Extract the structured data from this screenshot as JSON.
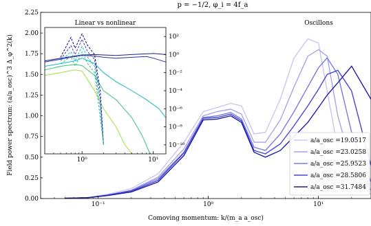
{
  "chart_data": [
    {
      "type": "line",
      "title": "p = −1/2, φ_i = 4f_a",
      "xlabel": "Comoving momentum: k/(m_a a_osc)",
      "ylabel": "Field power spectrum: (a/a_osc)^3 Δ_φ^2(k)",
      "xscale": "log",
      "xlim": [
        0.03,
        30
      ],
      "ylim": [
        0,
        2.25
      ],
      "x_ticks": [
        "10⁻¹",
        "10⁰",
        "10¹"
      ],
      "y_ticks": [
        "0.00",
        "0.25",
        "0.50",
        "0.75",
        "1.00",
        "1.25",
        "1.50",
        "1.75",
        "2.00",
        "2.25"
      ],
      "annotation": "Oscillons",
      "legend_placement": "lower right",
      "series": [
        {
          "name": "a/a_osc =19.0517",
          "color": "#c8c8ee",
          "x": [
            0.05,
            0.08,
            0.12,
            0.2,
            0.35,
            0.6,
            0.9,
            1.2,
            1.6,
            2.0,
            2.6,
            3.3,
            4.5,
            6.0,
            8.0,
            10.0,
            12.0,
            15.0,
            20.0,
            30.0
          ],
          "y": [
            0.003,
            0.01,
            0.05,
            0.12,
            0.3,
            0.68,
            1.05,
            1.1,
            1.15,
            1.12,
            0.78,
            0.8,
            1.2,
            1.7,
            1.93,
            1.88,
            1.3,
            0.6,
            0.25,
            0.05
          ]
        },
        {
          "name": "a/a_osc =23.0258",
          "color": "#a4a4ea",
          "x": [
            0.05,
            0.08,
            0.12,
            0.2,
            0.35,
            0.6,
            0.9,
            1.2,
            1.6,
            2.0,
            2.6,
            3.3,
            4.5,
            6.0,
            8.0,
            10.0,
            12.0,
            15.0,
            20.0,
            30.0
          ],
          "y": [
            0.003,
            0.01,
            0.04,
            0.1,
            0.26,
            0.6,
            1.0,
            1.05,
            1.08,
            1.02,
            0.68,
            0.68,
            0.95,
            1.35,
            1.72,
            1.8,
            1.72,
            1.0,
            0.4,
            0.1
          ]
        },
        {
          "name": "a/a_osc =25.9523",
          "color": "#7a7ae2",
          "x": [
            0.05,
            0.08,
            0.12,
            0.2,
            0.35,
            0.6,
            0.9,
            1.2,
            1.6,
            2.0,
            2.6,
            3.3,
            4.5,
            6.0,
            8.0,
            10.0,
            12.0,
            15.0,
            20.0,
            30.0
          ],
          "y": [
            0.003,
            0.01,
            0.04,
            0.1,
            0.24,
            0.56,
            0.98,
            1.0,
            1.04,
            0.96,
            0.62,
            0.58,
            0.78,
            1.05,
            1.35,
            1.58,
            1.7,
            1.5,
            0.8,
            0.2
          ]
        },
        {
          "name": "a/a_osc =28.5806",
          "color": "#4646d6",
          "x": [
            0.05,
            0.08,
            0.12,
            0.2,
            0.35,
            0.6,
            0.9,
            1.2,
            1.6,
            2.0,
            2.6,
            3.3,
            4.5,
            6.0,
            8.0,
            10.0,
            12.0,
            15.0,
            20.0,
            30.0
          ],
          "y": [
            0.003,
            0.01,
            0.04,
            0.09,
            0.22,
            0.55,
            0.97,
            0.98,
            1.02,
            0.94,
            0.58,
            0.54,
            0.66,
            0.88,
            1.12,
            1.32,
            1.5,
            1.55,
            1.3,
            0.4
          ]
        },
        {
          "name": "a/a_osc =31.7484",
          "color": "#1c1ca8",
          "x": [
            0.05,
            0.08,
            0.12,
            0.2,
            0.35,
            0.6,
            0.9,
            1.2,
            1.6,
            2.0,
            2.6,
            3.3,
            4.5,
            6.0,
            8.0,
            10.0,
            12.0,
            15.0,
            20.0,
            30.0
          ],
          "y": [
            0.003,
            0.01,
            0.035,
            0.08,
            0.2,
            0.52,
            0.95,
            0.96,
            1.0,
            0.92,
            0.56,
            0.5,
            0.58,
            0.75,
            0.92,
            1.1,
            1.25,
            1.4,
            1.6,
            1.2
          ]
        }
      ]
    },
    {
      "type": "line",
      "title": "Linear vs nonlinear",
      "xscale": "log",
      "yscale": "log",
      "xlim": [
        0.3,
        15
      ],
      "ylim": [
        1e-11,
        1000.0
      ],
      "x_ticks": [
        "10⁰",
        "10¹"
      ],
      "y_ticks": [
        "10²",
        "10⁰",
        "10⁻²",
        "10⁻⁴",
        "10⁻⁶",
        "10⁻⁸",
        "10⁻¹⁰"
      ],
      "series": [
        {
          "color": "#1c1c8e",
          "dash": false,
          "x": [
            0.3,
            0.5,
            0.8,
            1.0,
            1.5,
            2.0,
            3.0,
            5.0,
            8.0,
            10.0,
            15.0
          ],
          "y": [
            0.2,
            0.4,
            0.7,
            0.9,
            1.0,
            0.9,
            0.8,
            1.0,
            1.2,
            1.3,
            1.0
          ]
        },
        {
          "color": "#2d2da4",
          "dash": false,
          "x": [
            0.3,
            0.5,
            0.8,
            1.0,
            1.5,
            2.0,
            3.0,
            5.0,
            8.0,
            10.0,
            15.0
          ],
          "y": [
            0.15,
            0.3,
            0.6,
            0.8,
            0.7,
            0.5,
            0.4,
            0.5,
            0.6,
            0.4,
            0.15
          ]
        },
        {
          "color": "#19b8c8",
          "dash": false,
          "x": [
            0.3,
            0.5,
            0.8,
            1.0,
            1.5,
            2.0,
            3.0,
            5.0,
            8.0,
            12.0,
            15.0
          ],
          "y": [
            0.05,
            0.1,
            0.2,
            0.4,
            0.1,
            0.01,
            0.001,
            0.0001,
            1e-05,
            1e-06,
            1e-07
          ]
        },
        {
          "color": "#38c27a",
          "dash": false,
          "x": [
            0.3,
            0.5,
            0.8,
            1.0,
            1.5,
            2.0,
            3.0,
            5.0,
            7.0,
            9.0
          ],
          "y": [
            0.02,
            0.05,
            0.08,
            0.06,
            0.005,
            0.0001,
            1e-05,
            1e-07,
            1e-09,
            1e-11
          ]
        },
        {
          "color": "#9ee040",
          "dash": false,
          "x": [
            0.3,
            0.5,
            0.8,
            1.0,
            1.5,
            2.0,
            3.0,
            4.0,
            5.0
          ],
          "y": [
            0.005,
            0.01,
            0.02,
            0.015,
            0.0001,
            1e-06,
            1e-08,
            1e-10,
            1e-11
          ]
        },
        {
          "color": "#00008b",
          "dash": true,
          "x": [
            0.5,
            0.7,
            0.8,
            1.0,
            1.2,
            1.5,
            1.8,
            2.0
          ],
          "y": [
            0.5,
            80,
            5,
            200,
            10,
            1,
            0.0001,
            1e-10
          ]
        },
        {
          "color": "#3a3ac8",
          "dash": true,
          "x": [
            0.5,
            0.7,
            0.8,
            1.0,
            1.2,
            1.5,
            1.8,
            2.0
          ],
          "y": [
            0.3,
            10,
            1,
            50,
            2,
            0.3,
            1e-05,
            1e-10
          ]
        },
        {
          "color": "#19b8c8",
          "dash": true,
          "x": [
            0.5,
            0.7,
            0.8,
            1.0,
            1.2,
            1.5,
            1.8,
            2.0
          ],
          "y": [
            0.2,
            2,
            0.2,
            8,
            0.5,
            0.05,
            1e-06,
            1e-10
          ]
        },
        {
          "color": "#38c27a",
          "dash": true,
          "x": [
            0.5,
            0.7,
            0.8,
            1.0,
            1.2,
            1.5,
            1.8,
            2.0
          ],
          "y": [
            0.1,
            0.6,
            0.05,
            2,
            0.1,
            0.01,
            1e-07,
            1e-10
          ]
        }
      ]
    }
  ]
}
